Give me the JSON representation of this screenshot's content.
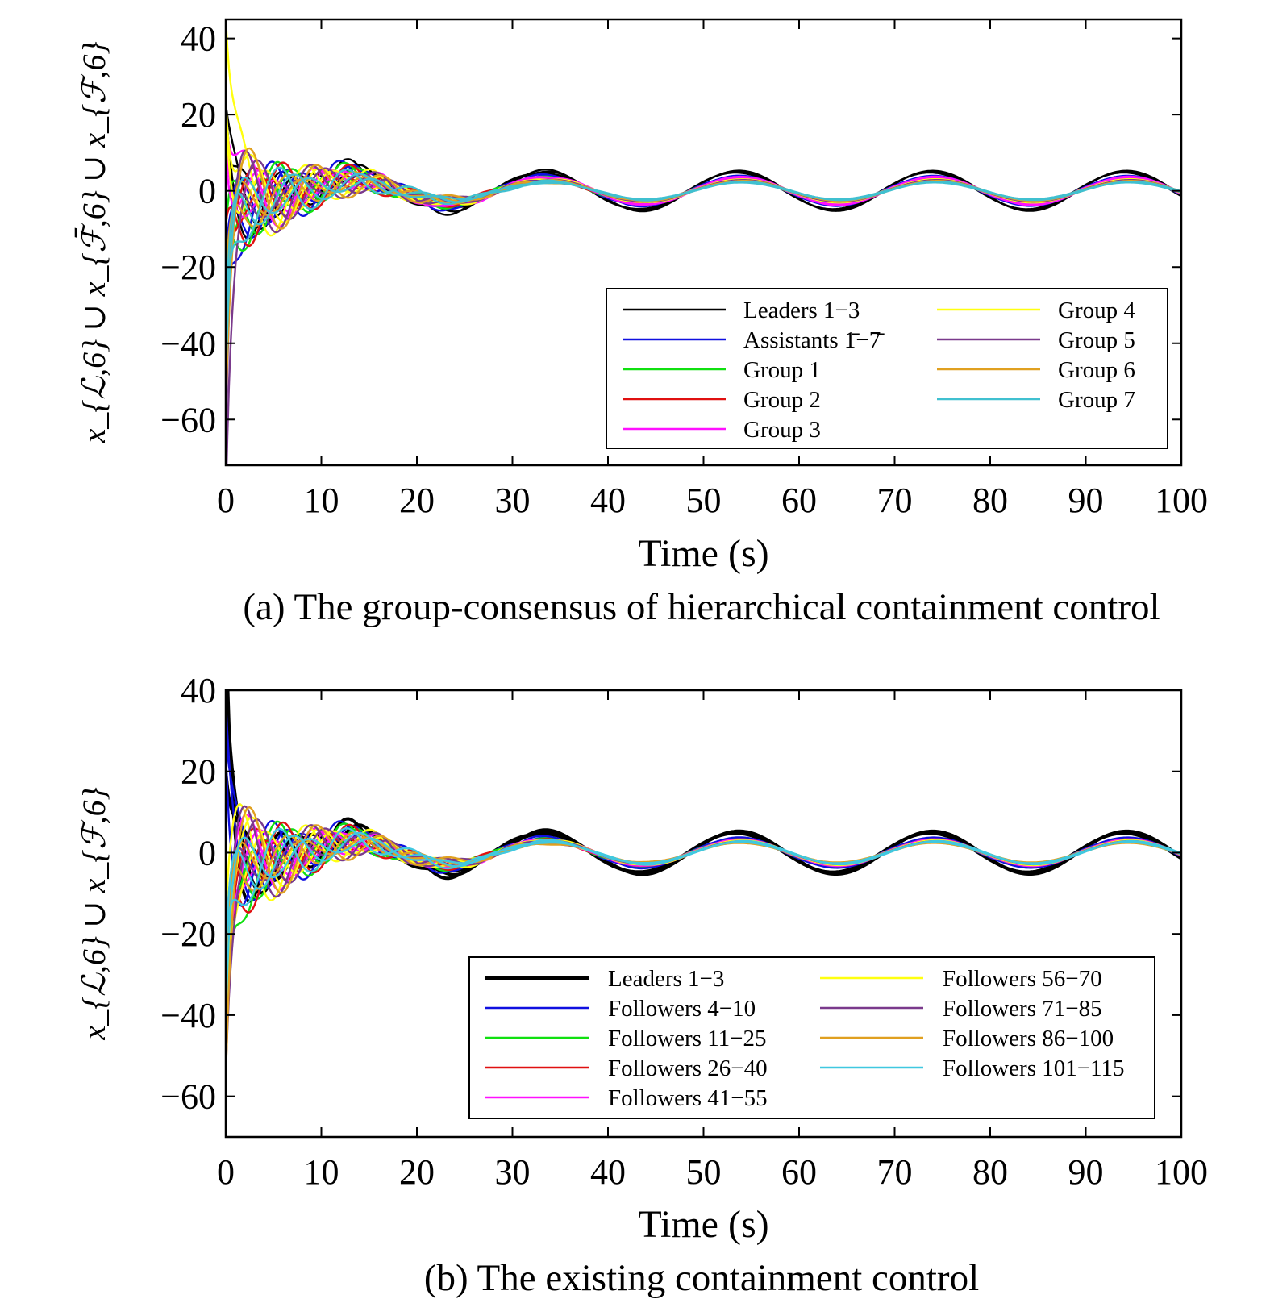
{
  "chart_data": [
    {
      "type": "line",
      "caption": "(a) The group-consensus of hierarchical containment control",
      "xlabel": "Time (s)",
      "ylabel": "x_{ℒ,6} ∪ x_{ℱ̄,6} ∪ x_{ℱ,6}",
      "xlim": [
        0,
        100
      ],
      "ylim": [
        -72,
        45
      ],
      "xticks": [
        0,
        10,
        20,
        30,
        40,
        50,
        60,
        70,
        80,
        90,
        100
      ],
      "yticks": [
        40,
        20,
        0,
        -20,
        -40,
        -60
      ],
      "ytick_labels": [
        "40",
        "20",
        "0",
        "−20",
        "−40",
        "−60"
      ],
      "grid": false,
      "legend_position": "lower-right",
      "series": [
        {
          "name": "Leaders 1−3",
          "color": "#000000",
          "amp_late": 4.8,
          "phase": 0.0,
          "start": 12,
          "initial_spread": 6
        },
        {
          "name": "Assistants 1̄−7̄",
          "color": "#1010e0",
          "amp_late": 3.6,
          "phase": 0.1,
          "start": -30,
          "initial_spread": 18
        },
        {
          "name": "Group 1",
          "color": "#10e010",
          "amp_late": 3.2,
          "phase": 0.2,
          "start": -20,
          "initial_spread": 8
        },
        {
          "name": "Group 2",
          "color": "#e01010",
          "amp_late": 3.0,
          "phase": 0.3,
          "start": -15,
          "initial_spread": 10
        },
        {
          "name": "Group 3",
          "color": "#ff10ff",
          "amp_late": 3.4,
          "phase": 0.25,
          "start": 20,
          "initial_spread": 12
        },
        {
          "name": "Group 4",
          "color": "#ffff10",
          "amp_late": 2.8,
          "phase": 0.35,
          "start": 35,
          "initial_spread": 10
        },
        {
          "name": "Group 5",
          "color": "#7a3a8c",
          "amp_late": 2.6,
          "phase": 0.4,
          "start": -60,
          "initial_spread": 15
        },
        {
          "name": "Group 6",
          "color": "#e0a020",
          "amp_late": 2.4,
          "phase": 0.45,
          "start": -40,
          "initial_spread": 12
        },
        {
          "name": "Group 7",
          "color": "#40c0d0",
          "amp_late": 2.2,
          "phase": 0.5,
          "start": -45,
          "initial_spread": 10
        }
      ]
    },
    {
      "type": "line",
      "caption": "(b) The existing containment control",
      "xlabel": "Time (s)",
      "ylabel": "x_{ℒ,6} ∪ x_{ℱ,6}",
      "xlim": [
        0,
        100
      ],
      "ylim": [
        -70,
        40
      ],
      "xticks": [
        0,
        10,
        20,
        30,
        40,
        50,
        60,
        70,
        80,
        90,
        100
      ],
      "yticks": [
        40,
        20,
        0,
        -20,
        -40,
        -60
      ],
      "ytick_labels": [
        "40",
        "20",
        "0",
        "−20",
        "−40",
        "−60"
      ],
      "grid": false,
      "legend_position": "lower-right",
      "series": [
        {
          "name": "Leaders 1−3",
          "color": "#000000",
          "amp_late": 4.8,
          "phase": 0.0,
          "start": 35,
          "initial_spread": 30,
          "thick": true
        },
        {
          "name": "Followers 4−10",
          "color": "#1010e0",
          "amp_late": 3.4,
          "phase": 0.1,
          "start": 25,
          "initial_spread": 8
        },
        {
          "name": "Followers 11−25",
          "color": "#10e010",
          "amp_late": 3.0,
          "phase": 0.2,
          "start": -45,
          "initial_spread": 8
        },
        {
          "name": "Followers 26−40",
          "color": "#e01010",
          "amp_late": 3.0,
          "phase": 0.3,
          "start": -30,
          "initial_spread": 10
        },
        {
          "name": "Followers 41−55",
          "color": "#ff10ff",
          "amp_late": 3.0,
          "phase": 0.25,
          "start": -20,
          "initial_spread": 12
        },
        {
          "name": "Followers 56−70",
          "color": "#ffff10",
          "amp_late": 2.8,
          "phase": 0.35,
          "start": -25,
          "initial_spread": 10
        },
        {
          "name": "Followers 71−85",
          "color": "#7a3a8c",
          "amp_late": 2.6,
          "phase": 0.4,
          "start": -35,
          "initial_spread": 10
        },
        {
          "name": "Followers 86−100",
          "color": "#e0a020",
          "amp_late": 2.4,
          "phase": 0.45,
          "start": -40,
          "initial_spread": 10
        },
        {
          "name": "Followers 101−115",
          "color": "#40c8e0",
          "amp_late": 2.6,
          "phase": 0.5,
          "start": -35,
          "initial_spread": 12
        }
      ]
    }
  ]
}
